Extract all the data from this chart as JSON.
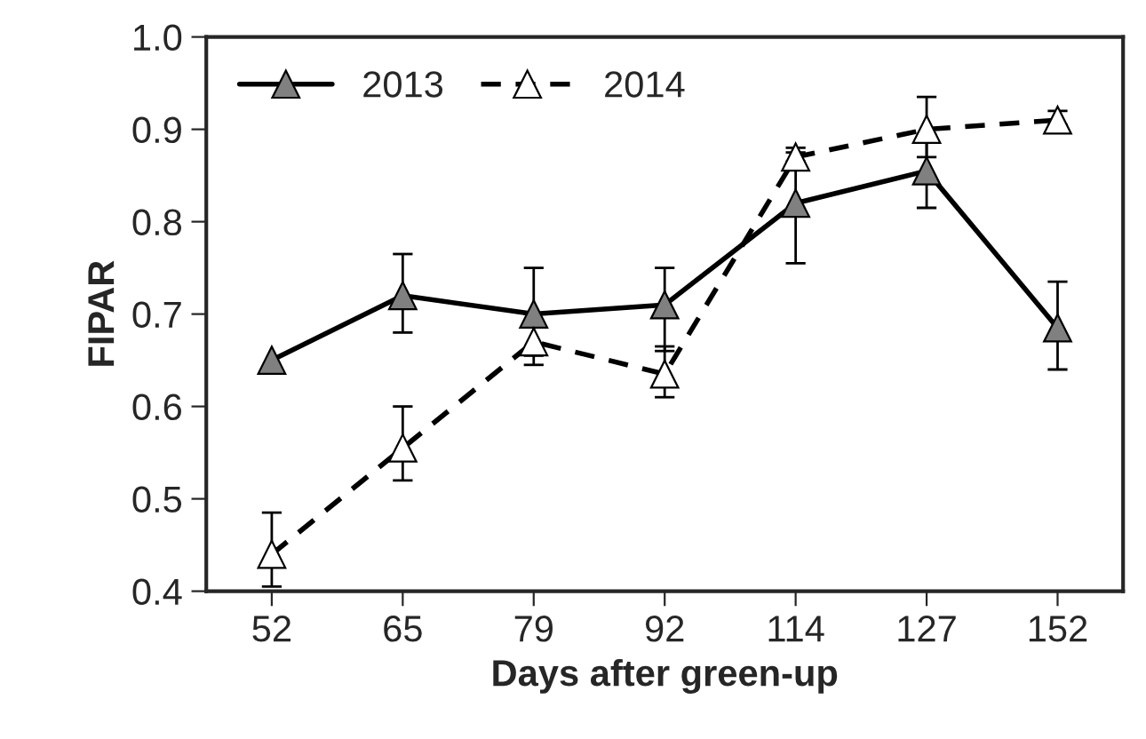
{
  "chart_data": {
    "type": "line",
    "xlabel": "Days after green-up",
    "ylabel": "FIPAR",
    "categories": [
      "52",
      "65",
      "79",
      "92",
      "114",
      "127",
      "152"
    ],
    "ylim": [
      0.4,
      1.0
    ],
    "yticks": [
      {
        "value": 0.4,
        "label": "0.4"
      },
      {
        "value": 0.5,
        "label": "0.5"
      },
      {
        "value": 0.6,
        "label": "0.6"
      },
      {
        "value": 0.7,
        "label": "0.7"
      },
      {
        "value": 0.8,
        "label": "0.8"
      },
      {
        "value": 0.9,
        "label": "0.9"
      },
      {
        "value": 1.0,
        "label": "1.0"
      }
    ],
    "series": [
      {
        "name": "2013",
        "color": "#808080",
        "line_style": "solid",
        "values": [
          0.65,
          0.72,
          0.7,
          0.71,
          0.82,
          0.855,
          0.685
        ],
        "errors": [
          null,
          [
            0.68,
            0.765
          ],
          [
            0.655,
            0.75
          ],
          [
            0.66,
            0.75
          ],
          [
            0.755,
            0.875
          ],
          [
            0.815,
            0.895
          ],
          [
            0.64,
            0.735
          ]
        ]
      },
      {
        "name": "2014",
        "color": "#ffffff",
        "line_style": "dashed",
        "values": [
          0.44,
          0.555,
          0.67,
          0.635,
          0.87,
          0.9,
          0.91
        ],
        "errors": [
          [
            0.405,
            0.485
          ],
          [
            0.52,
            0.6
          ],
          [
            0.645,
            0.7
          ],
          [
            0.61,
            0.665
          ],
          [
            0.865,
            0.88
          ],
          [
            0.87,
            0.935
          ],
          [
            0.905,
            0.92
          ]
        ]
      }
    ],
    "marker": "triangle",
    "grid": false,
    "legend": "top left"
  }
}
